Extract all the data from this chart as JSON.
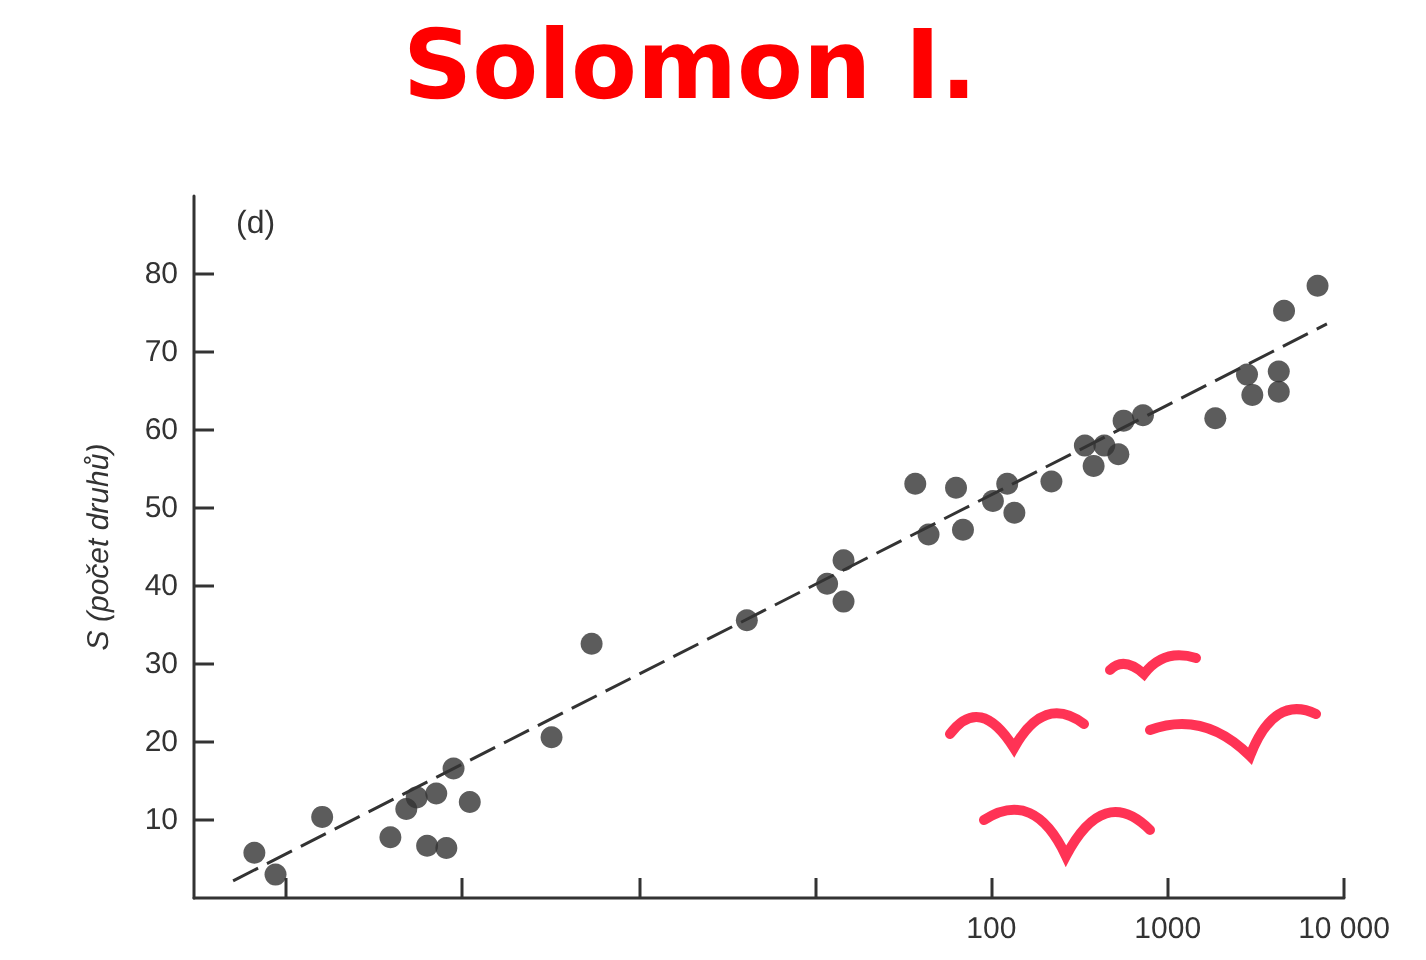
{
  "chart_data": {
    "type": "scatter",
    "title": "Solomon I.",
    "ylabel": "S (počet druhů)",
    "annotations": [
      "(d)"
    ],
    "log": "x",
    "xlim": [
      0.003,
      10000
    ],
    "ylim": [
      0,
      90
    ],
    "xticks": [
      {
        "value": 0.01,
        "label": null
      },
      {
        "value": 0.1,
        "label": null
      },
      {
        "value": 1,
        "label": null
      },
      {
        "value": 10,
        "label": null
      },
      100,
      1000,
      {
        "value": 10000,
        "label": "10 000"
      }
    ],
    "yticks": [
      10,
      20,
      30,
      40,
      50,
      60,
      70,
      80
    ],
    "grid": false,
    "marker": "circle",
    "series": [
      {
        "color": "#333333",
        "x": [
          0.0066,
          0.0087,
          0.016,
          0.039,
          0.048,
          0.055,
          0.063,
          0.071,
          0.081,
          0.089,
          0.11,
          0.32,
          0.54,
          4.1,
          11.7,
          14.5,
          14.5,
          37,
          44,
          63,
          69,
          102,
          123,
          135,
          219,
          339,
          380,
          437,
          525,
          562,
          724,
          1862,
          2818,
          3020,
          4266,
          4266,
          4571,
          7079
        ],
        "values": [
          5.8,
          3.0,
          10.4,
          7.8,
          11.4,
          12.9,
          6.7,
          13.4,
          6.4,
          16.6,
          12.3,
          20.6,
          32.6,
          35.6,
          40.3,
          43.3,
          38.0,
          53.1,
          46.6,
          52.6,
          47.2,
          50.9,
          53.1,
          49.4,
          53.4,
          58.0,
          55.4,
          58.0,
          56.9,
          61.2,
          61.9,
          61.5,
          67.1,
          64.5,
          67.5,
          64.9,
          75.3,
          78.5
        ]
      },
      {
        "type": "line",
        "color": "#333333",
        "line_style": "dashed",
        "marker": "none",
        "x": [
          0.005,
          8000
        ],
        "values": [
          2.2,
          73.6
        ]
      }
    ]
  }
}
